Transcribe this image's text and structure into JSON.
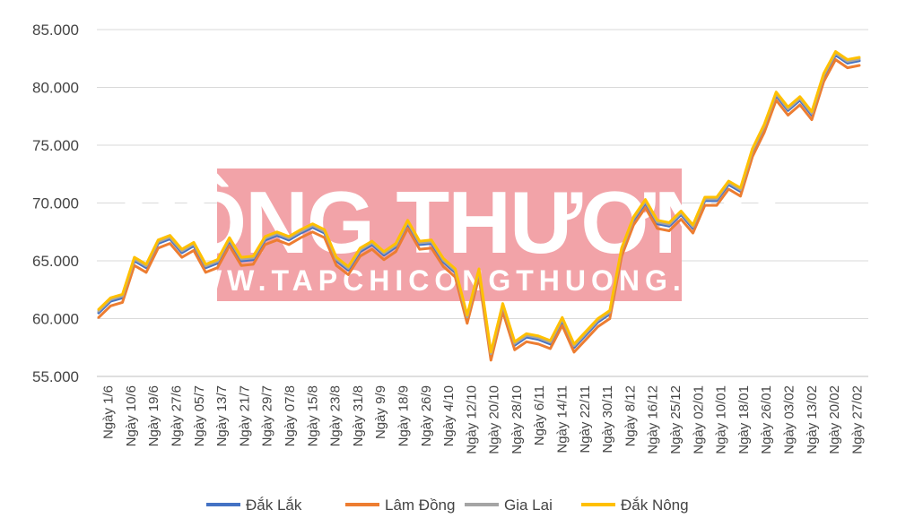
{
  "watermark": {
    "title": "CÔNG THƯƠNG",
    "url": "WWW.TAPCHICONGTHUONG.VN",
    "color": "#f2a3a8"
  },
  "chart_data": {
    "type": "line",
    "title": "",
    "xlabel": "",
    "ylabel": "",
    "ylim": [
      55000,
      85000
    ],
    "yticks": [
      55000,
      60000,
      65000,
      70000,
      75000,
      80000,
      85000
    ],
    "ytick_labels": [
      "55.000",
      "60.000",
      "65.000",
      "70.000",
      "75.000",
      "80.000",
      "85.000"
    ],
    "grid": true,
    "legend_position": "bottom",
    "categories": [
      "Ngày 1/6",
      "Ngày 10/6",
      "Ngày 19/6",
      "Ngày 27/6",
      "Ngày 05/7",
      "Ngày 13/7",
      "Ngày 21/7",
      "Ngày 29/7",
      "Ngày 07/8",
      "Ngày 15/8",
      "Ngày 23/8",
      "Ngày 31/8",
      "Ngày 9/9",
      "Ngày 18/9",
      "Ngày 26/9",
      "Ngày 4/10",
      "Ngày 12/10",
      "Ngày 20/10",
      "Ngày 28/10",
      "Ngày 6/11",
      "Ngày 14/11",
      "Ngày 22/11",
      "Ngày 30/11",
      "Ngày 8/12",
      "Ngày 16/12",
      "Ngày 25/12",
      "Ngày 02/01",
      "Ngày 10/01",
      "Ngày 18/01",
      "Ngày 26/01",
      "Ngày 03/02",
      "Ngày 13/02",
      "Ngày 20/02",
      "Ngày 27/02"
    ],
    "base_values": [
      60500,
      61500,
      61800,
      65000,
      64400,
      66500,
      66900,
      65700,
      66300,
      64400,
      64800,
      66700,
      65000,
      65100,
      66800,
      67200,
      66800,
      67400,
      67900,
      67400,
      65000,
      64200,
      65800,
      66400,
      65500,
      66200,
      68200,
      66400,
      66500,
      64900,
      64000,
      60000,
      64000,
      56800,
      61000,
      57700,
      58400,
      58200,
      57800,
      59800,
      57500,
      58600,
      59700,
      60400,
      65800,
      68500,
      70000,
      68200,
      68000,
      69000,
      67800,
      70200,
      70200,
      71600,
      71000,
      74400,
      76500,
      79300,
      78000,
      78900,
      77600,
      80900,
      82800,
      82100,
      82300
    ],
    "series": [
      {
        "name": "Đắk Lắk",
        "color": "#4472c4",
        "offset": 0
      },
      {
        "name": "Lâm Đồng",
        "color": "#ed7d31",
        "offset": -400
      },
      {
        "name": "Gia Lai",
        "color": "#a5a5a5",
        "offset": 150
      },
      {
        "name": "Đắk Nông",
        "color": "#ffc000",
        "offset": 300
      }
    ]
  }
}
